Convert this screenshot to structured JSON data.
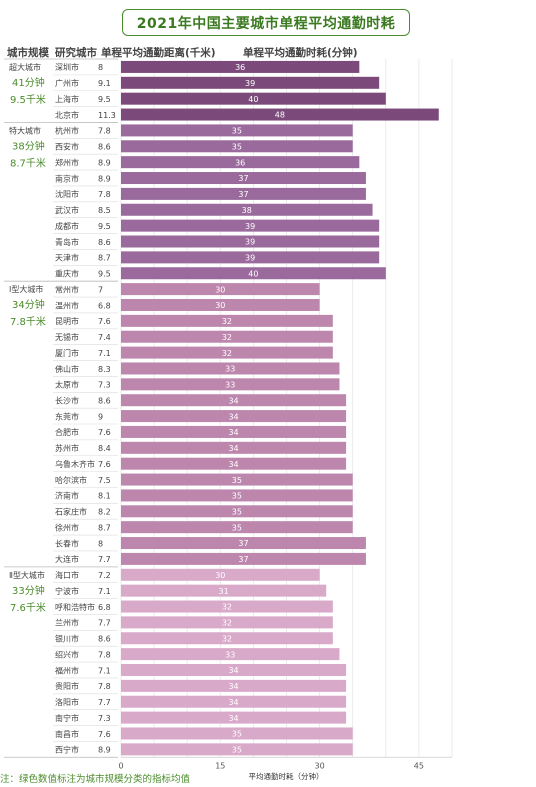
{
  "title": "2021年中国主要城市单程平均通勤时耗",
  "headers": {
    "scale": "城市规模",
    "city": "研究城市",
    "distance": "单程平均通勤距离(千米)",
    "time": "单程平均通勤时耗(分钟)"
  },
  "note": "注：绿色数值标注为城市规模分类的指标均值",
  "groups": [
    {
      "name": "超大城市",
      "avg_time": "41分钟",
      "avg_dist": "9.5千米",
      "color": "#7b4a7b"
    },
    {
      "name": "特大城市",
      "avg_time": "38分钟",
      "avg_dist": "8.7千米",
      "color": "#9a6a9c"
    },
    {
      "name": "Ⅰ型大城市",
      "avg_time": "34分钟",
      "avg_dist": "7.8千米",
      "color": "#bd86ad"
    },
    {
      "name": "Ⅱ型大城市",
      "avg_time": "33分钟",
      "avg_dist": "7.6千米",
      "color": "#d9a9c9"
    }
  ],
  "chart_data": {
    "type": "bar",
    "orientation": "horizontal",
    "xlabel": "平均通勤时耗（分钟）",
    "xlim": [
      0,
      50
    ],
    "xticks": [
      0,
      15,
      30,
      45
    ],
    "grid": true,
    "rows": [
      {
        "group": 0,
        "city": "深圳市",
        "distance": "8",
        "time": 36
      },
      {
        "group": 0,
        "city": "广州市",
        "distance": "9.1",
        "time": 39
      },
      {
        "group": 0,
        "city": "上海市",
        "distance": "9.5",
        "time": 40
      },
      {
        "group": 0,
        "city": "北京市",
        "distance": "11.3",
        "time": 48
      },
      {
        "group": 1,
        "city": "杭州市",
        "distance": "7.8",
        "time": 35
      },
      {
        "group": 1,
        "city": "西安市",
        "distance": "8.6",
        "time": 35
      },
      {
        "group": 1,
        "city": "郑州市",
        "distance": "8.9",
        "time": 36
      },
      {
        "group": 1,
        "city": "南京市",
        "distance": "8.9",
        "time": 37
      },
      {
        "group": 1,
        "city": "沈阳市",
        "distance": "7.8",
        "time": 37
      },
      {
        "group": 1,
        "city": "武汉市",
        "distance": "8.5",
        "time": 38
      },
      {
        "group": 1,
        "city": "成都市",
        "distance": "9.5",
        "time": 39
      },
      {
        "group": 1,
        "city": "青岛市",
        "distance": "8.6",
        "time": 39
      },
      {
        "group": 1,
        "city": "天津市",
        "distance": "8.7",
        "time": 39
      },
      {
        "group": 1,
        "city": "重庆市",
        "distance": "9.5",
        "time": 40
      },
      {
        "group": 2,
        "city": "常州市",
        "distance": "7",
        "time": 30
      },
      {
        "group": 2,
        "city": "温州市",
        "distance": "6.8",
        "time": 30
      },
      {
        "group": 2,
        "city": "昆明市",
        "distance": "7.6",
        "time": 32
      },
      {
        "group": 2,
        "city": "无锡市",
        "distance": "7.4",
        "time": 32
      },
      {
        "group": 2,
        "city": "厦门市",
        "distance": "7.1",
        "time": 32
      },
      {
        "group": 2,
        "city": "佛山市",
        "distance": "8.3",
        "time": 33
      },
      {
        "group": 2,
        "city": "太原市",
        "distance": "7.3",
        "time": 33
      },
      {
        "group": 2,
        "city": "长沙市",
        "distance": "8.6",
        "time": 34
      },
      {
        "group": 2,
        "city": "东莞市",
        "distance": "9",
        "time": 34
      },
      {
        "group": 2,
        "city": "合肥市",
        "distance": "7.6",
        "time": 34
      },
      {
        "group": 2,
        "city": "苏州市",
        "distance": "8.4",
        "time": 34
      },
      {
        "group": 2,
        "city": "乌鲁木齐市",
        "distance": "7.6",
        "time": 34
      },
      {
        "group": 2,
        "city": "哈尔滨市",
        "distance": "7.5",
        "time": 35
      },
      {
        "group": 2,
        "city": "济南市",
        "distance": "8.1",
        "time": 35
      },
      {
        "group": 2,
        "city": "石家庄市",
        "distance": "8.2",
        "time": 35
      },
      {
        "group": 2,
        "city": "徐州市",
        "distance": "8.7",
        "time": 35
      },
      {
        "group": 2,
        "city": "长春市",
        "distance": "8",
        "time": 37
      },
      {
        "group": 2,
        "city": "大连市",
        "distance": "7.7",
        "time": 37
      },
      {
        "group": 3,
        "city": "海口市",
        "distance": "7.2",
        "time": 30
      },
      {
        "group": 3,
        "city": "宁波市",
        "distance": "7.1",
        "time": 31
      },
      {
        "group": 3,
        "city": "呼和浩特市",
        "distance": "6.8",
        "time": 32
      },
      {
        "group": 3,
        "city": "兰州市",
        "distance": "7.7",
        "time": 32
      },
      {
        "group": 3,
        "city": "银川市",
        "distance": "8.6",
        "time": 32
      },
      {
        "group": 3,
        "city": "绍兴市",
        "distance": "7.8",
        "time": 33
      },
      {
        "group": 3,
        "city": "福州市",
        "distance": "7.1",
        "time": 34
      },
      {
        "group": 3,
        "city": "贵阳市",
        "distance": "7.8",
        "time": 34
      },
      {
        "group": 3,
        "city": "洛阳市",
        "distance": "7.7",
        "time": 34
      },
      {
        "group": 3,
        "city": "南宁市",
        "distance": "7.3",
        "time": 34
      },
      {
        "group": 3,
        "city": "南昌市",
        "distance": "7.6",
        "time": 35
      },
      {
        "group": 3,
        "city": "西宁市",
        "distance": "8.9",
        "time": 35
      }
    ]
  }
}
